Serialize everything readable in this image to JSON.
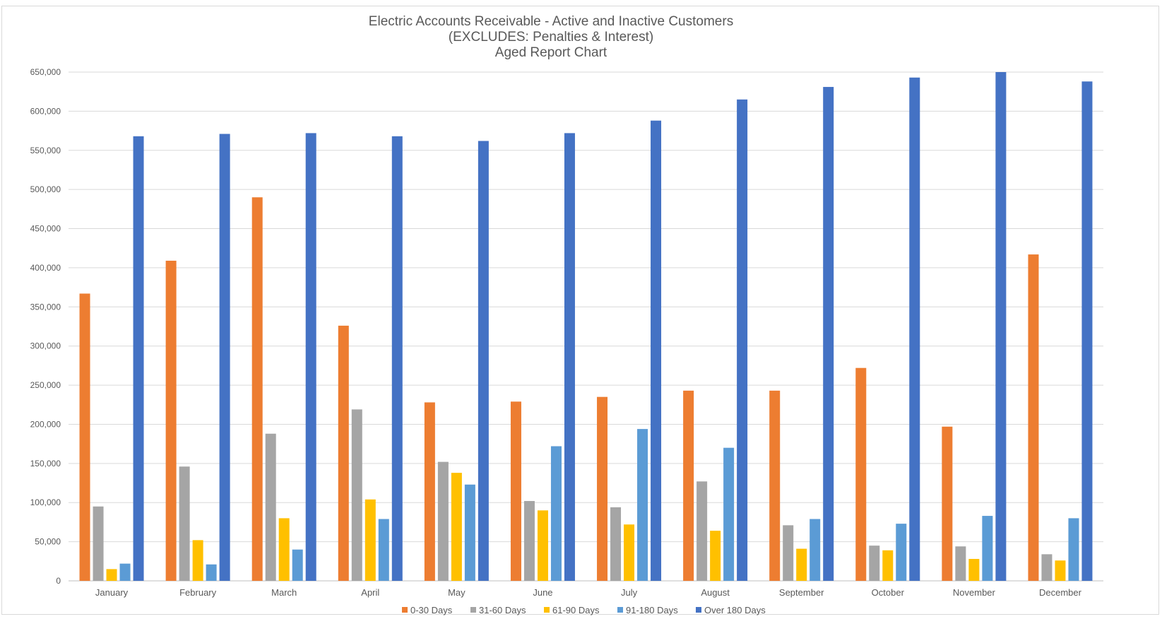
{
  "chart_data": {
    "type": "bar",
    "title": [
      "Electric Accounts Receivable  - Active and Inactive Customers",
      "(EXCLUDES: Penalties & Interest)",
      "Aged Report Chart"
    ],
    "xlabel": "",
    "ylabel": "",
    "ylim": [
      0,
      650000
    ],
    "yticks": [
      0,
      50000,
      100000,
      150000,
      200000,
      250000,
      300000,
      350000,
      400000,
      450000,
      500000,
      550000,
      600000,
      650000
    ],
    "ytick_labels": [
      "0",
      "50,000",
      "100,000",
      "150,000",
      "200,000",
      "250,000",
      "300,000",
      "350,000",
      "400,000",
      "450,000",
      "500,000",
      "550,000",
      "600,000",
      "650,000"
    ],
    "grid": true,
    "legend_position": "bottom",
    "categories": [
      "January",
      "February",
      "March",
      "April",
      "May",
      "June",
      "July",
      "August",
      "September",
      "October",
      "November",
      "December"
    ],
    "series": [
      {
        "name": "0-30 Days",
        "color": "#ED7D31",
        "values": [
          367000,
          409000,
          490000,
          326000,
          228000,
          229000,
          235000,
          243000,
          243000,
          272000,
          197000,
          417000
        ]
      },
      {
        "name": "31-60 Days",
        "color": "#A5A5A5",
        "values": [
          95000,
          146000,
          188000,
          219000,
          152000,
          102000,
          94000,
          127000,
          71000,
          45000,
          44000,
          34000
        ]
      },
      {
        "name": "61-90 Days",
        "color": "#FFC000",
        "values": [
          15000,
          52000,
          80000,
          104000,
          138000,
          90000,
          72000,
          64000,
          41000,
          39000,
          28000,
          26000
        ]
      },
      {
        "name": "91-180 Days",
        "color": "#5B9BD5",
        "values": [
          22000,
          21000,
          40000,
          79000,
          123000,
          172000,
          194000,
          170000,
          79000,
          73000,
          83000,
          80000
        ]
      },
      {
        "name": "Over 180 Days",
        "color": "#4472C4",
        "values": [
          568000,
          571000,
          572000,
          568000,
          562000,
          572000,
          588000,
          615000,
          631000,
          643000,
          650000,
          638000
        ]
      }
    ]
  }
}
